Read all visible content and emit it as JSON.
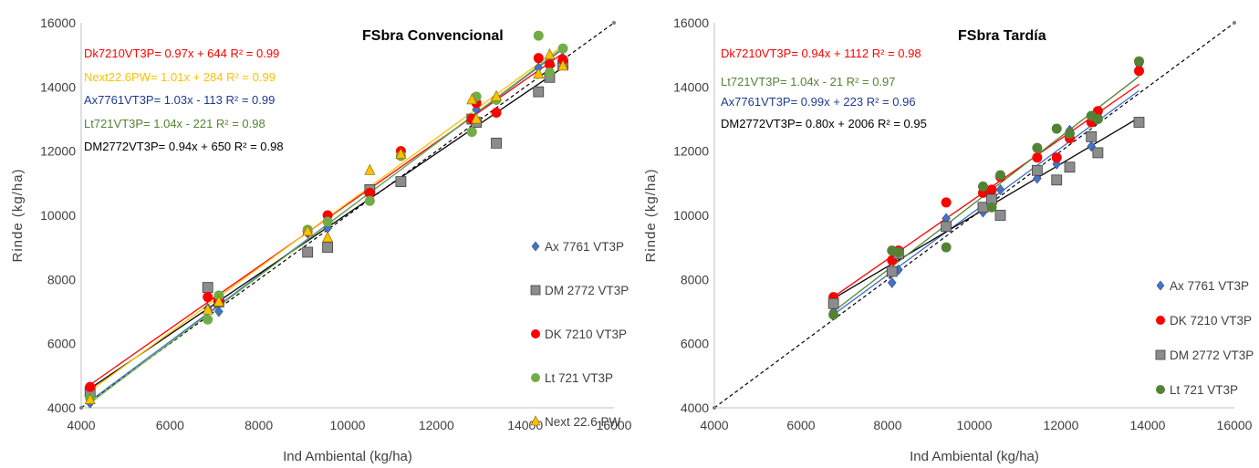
{
  "chart_data": [
    {
      "type": "scatter",
      "title": "FSbra Convencional",
      "xlabel": "Ind Ambiental (kg/ha)",
      "ylabel": "Rinde (kg/ha)",
      "xlim": [
        4000,
        16000
      ],
      "ylim": [
        4000,
        16000
      ],
      "xticks": [
        "4000",
        "6000",
        "8000",
        "10000",
        "12000",
        "14000",
        "16000"
      ],
      "yticks": [
        "4000",
        "6000",
        "8000",
        "10000",
        "12000",
        "14000",
        "16000"
      ],
      "grid": false,
      "reference_line": [
        [
          4000,
          4000
        ],
        [
          16000,
          16000
        ]
      ],
      "legend_position": "bottom-right",
      "series": [
        {
          "name": "Ax 7761 VT3P",
          "marker": "diamond",
          "color": "#4472c4",
          "fit": {
            "slope": 1.03,
            "intercept": -113
          },
          "points": [
            [
              4200,
              4150
            ],
            [
              6850,
              7100
            ],
            [
              7100,
              7000
            ],
            [
              9100,
              9450
            ],
            [
              9550,
              9600
            ],
            [
              10500,
              10600
            ],
            [
              11200,
              11900
            ],
            [
              12800,
              13000
            ],
            [
              12900,
              13300
            ],
            [
              13350,
              13600
            ],
            [
              14300,
              14600
            ],
            [
              14550,
              14800
            ],
            [
              14850,
              14900
            ]
          ]
        },
        {
          "name": "DM 2772 VT3P",
          "marker": "square",
          "color": "#8c8c8c",
          "fit": {
            "slope": 0.94,
            "intercept": 650
          },
          "points": [
            [
              4200,
              4500
            ],
            [
              6850,
              7750
            ],
            [
              7100,
              7300
            ],
            [
              9100,
              8850
            ],
            [
              9550,
              9000
            ],
            [
              10500,
              10800
            ],
            [
              11200,
              11050
            ],
            [
              12800,
              13000
            ],
            [
              12900,
              12900
            ],
            [
              13350,
              12250
            ],
            [
              14300,
              13850
            ],
            [
              14550,
              14300
            ],
            [
              14850,
              14700
            ]
          ]
        },
        {
          "name": "DK 7210 VT3P",
          "marker": "circle",
          "color": "#ff0000",
          "fit": {
            "slope": 0.97,
            "intercept": 644
          },
          "points": [
            [
              4200,
              4650
            ],
            [
              6850,
              7450
            ],
            [
              7100,
              7350
            ],
            [
              9100,
              9500
            ],
            [
              9550,
              10000
            ],
            [
              10500,
              10700
            ],
            [
              11200,
              12000
            ],
            [
              12800,
              13000
            ],
            [
              12900,
              13500
            ],
            [
              13350,
              13200
            ],
            [
              14300,
              14900
            ],
            [
              14550,
              14700
            ],
            [
              14850,
              14850
            ]
          ]
        },
        {
          "name": "Lt 721 VT3P",
          "marker": "circle",
          "color": "#70ad47",
          "fit": {
            "slope": 1.04,
            "intercept": -221
          },
          "points": [
            [
              4200,
              4300
            ],
            [
              6850,
              6750
            ],
            [
              7100,
              7500
            ],
            [
              9100,
              9550
            ],
            [
              9550,
              9800
            ],
            [
              10500,
              10450
            ],
            [
              11200,
              11850
            ],
            [
              12800,
              12600
            ],
            [
              12900,
              13700
            ],
            [
              13350,
              13600
            ],
            [
              14300,
              15600
            ],
            [
              14550,
              14450
            ],
            [
              14850,
              15200
            ]
          ]
        },
        {
          "name": "Next 22.6 PW",
          "marker": "triangle",
          "color": "#ffc000",
          "fit": {
            "slope": 1.01,
            "intercept": 284
          },
          "points": [
            [
              4200,
              4250
            ],
            [
              6850,
              7050
            ],
            [
              7100,
              7300
            ],
            [
              9100,
              9500
            ],
            [
              9550,
              9300
            ],
            [
              10500,
              11400
            ],
            [
              11200,
              11900
            ],
            [
              12800,
              13600
            ],
            [
              12900,
              13000
            ],
            [
              13350,
              13700
            ],
            [
              14300,
              14400
            ],
            [
              14550,
              15000
            ],
            [
              14850,
              14650
            ]
          ]
        }
      ],
      "equations": [
        {
          "text": "Dk7210VT3P= 0.97x + 644 R² = 0.99",
          "color": "#ff0000"
        },
        {
          "text": "Next22.6PW= 1.01x + 284 R² = 0.99",
          "color": "#ffc000"
        },
        {
          "text": "Ax7761VT3P= 1.03x - 113 R² = 0.99",
          "color": "#1f3b8c"
        },
        {
          "text": "Lt721VT3P= 1.04x - 221 R² = 0.98",
          "color": "#548235"
        },
        {
          "text": "DM2772VT3P= 0.94x + 650 R² = 0.98",
          "color": "#000000"
        }
      ]
    },
    {
      "type": "scatter",
      "title": "FSbra Tardía",
      "xlabel": "Ind Ambiental (kg/ha)",
      "ylabel": "Rinde (kg/ha)",
      "xlim": [
        4000,
        16000
      ],
      "ylim": [
        4000,
        16000
      ],
      "xticks": [
        "4000",
        "6000",
        "8000",
        "10000",
        "12000",
        "14000",
        "16000"
      ],
      "yticks": [
        "4000",
        "6000",
        "8000",
        "10000",
        "12000",
        "14000",
        "16000"
      ],
      "grid": false,
      "reference_line": [
        [
          4000,
          4000
        ],
        [
          16000,
          16000
        ]
      ],
      "legend_position": "bottom-right",
      "series": [
        {
          "name": "Ax 7761 VT3P",
          "marker": "diamond",
          "color": "#4472c4",
          "fit": {
            "slope": 0.99,
            "intercept": 223
          },
          "points": [
            [
              6750,
              7000
            ],
            [
              8100,
              7900
            ],
            [
              8250,
              8300
            ],
            [
              9350,
              9900
            ],
            [
              10200,
              10100
            ],
            [
              10400,
              10700
            ],
            [
              10600,
              10800
            ],
            [
              11450,
              11150
            ],
            [
              11900,
              11600
            ],
            [
              12200,
              12650
            ],
            [
              12700,
              12150
            ],
            [
              12850,
              13100
            ],
            [
              13800,
              14700
            ]
          ]
        },
        {
          "name": "DK 7210 VT3P",
          "marker": "circle",
          "color": "#ff0000",
          "fit": {
            "slope": 0.94,
            "intercept": 1112
          },
          "points": [
            [
              6750,
              7450
            ],
            [
              8100,
              8600
            ],
            [
              8250,
              8900
            ],
            [
              9350,
              10400
            ],
            [
              10200,
              10700
            ],
            [
              10400,
              10800
            ],
            [
              10600,
              11200
            ],
            [
              11450,
              11800
            ],
            [
              11900,
              11800
            ],
            [
              12200,
              12400
            ],
            [
              12700,
              12900
            ],
            [
              12850,
              13250
            ],
            [
              13800,
              14500
            ]
          ]
        },
        {
          "name": "DM 2772 VT3P",
          "marker": "square",
          "color": "#8c8c8c",
          "fit": {
            "slope": 0.8,
            "intercept": 2006
          },
          "points": [
            [
              6750,
              7250
            ],
            [
              8100,
              8250
            ],
            [
              8250,
              8800
            ],
            [
              9350,
              9650
            ],
            [
              10200,
              10250
            ],
            [
              10400,
              10500
            ],
            [
              10600,
              10000
            ],
            [
              11450,
              11400
            ],
            [
              11900,
              11100
            ],
            [
              12200,
              11500
            ],
            [
              12700,
              12450
            ],
            [
              12850,
              11950
            ],
            [
              13800,
              12900
            ]
          ]
        },
        {
          "name": "Lt 721 VT3P",
          "marker": "circle",
          "color": "#548235",
          "fit": {
            "slope": 1.04,
            "intercept": -21
          },
          "points": [
            [
              6750,
              6900
            ],
            [
              8100,
              8900
            ],
            [
              8250,
              8850
            ],
            [
              9350,
              9000
            ],
            [
              10200,
              10900
            ],
            [
              10400,
              10250
            ],
            [
              10600,
              11250
            ],
            [
              11450,
              12100
            ],
            [
              11900,
              12700
            ],
            [
              12200,
              12550
            ],
            [
              12700,
              13100
            ],
            [
              12850,
              13000
            ],
            [
              13800,
              14800
            ]
          ]
        }
      ],
      "equations": [
        {
          "text": "Dk7210VT3P= 0.94x + 1112 R² = 0.98",
          "color": "#ff0000"
        },
        {
          "text": "Lt721VT3P= 1.04x - 21 R² = 0.97",
          "color": "#548235"
        },
        {
          "text": "Ax7761VT3P= 0.99x + 223 R² = 0.96",
          "color": "#1f3b8c"
        },
        {
          "text": "DM2772VT3P= 0.80x + 2006 R² = 0.95",
          "color": "#000000"
        }
      ]
    }
  ]
}
